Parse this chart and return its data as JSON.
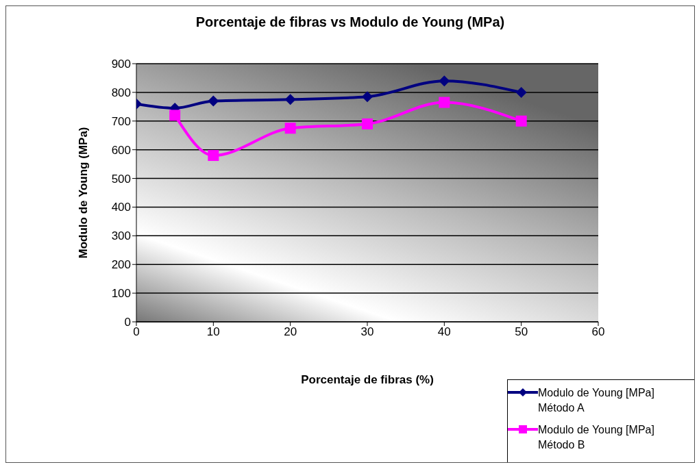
{
  "chart_data": {
    "type": "line",
    "title": "Porcentaje de fibras vs Modulo de Young (MPa)",
    "xlabel": "Porcentaje de fibras (%)",
    "ylabel": "Modulo de Young (MPa)",
    "xlim": [
      0,
      60
    ],
    "xticks": [
      0,
      10,
      20,
      30,
      40,
      50,
      60
    ],
    "ylim": [
      0,
      900
    ],
    "yticks": [
      0,
      100,
      200,
      300,
      400,
      500,
      600,
      700,
      800,
      900
    ],
    "grid": "y",
    "legend": "bottom right",
    "series": [
      {
        "name": "Modulo de Young [MPa] Método A",
        "color": "#000080",
        "marker": "diamond",
        "x": [
          0,
          5,
          10,
          20,
          30,
          40,
          50
        ],
        "values": [
          760,
          745,
          770,
          775,
          785,
          840,
          800
        ]
      },
      {
        "name": "Modulo de Young [MPa] Método B",
        "color": "#ff00ff",
        "marker": "square",
        "x": [
          5,
          10,
          20,
          30,
          40,
          50
        ],
        "values": [
          720,
          580,
          675,
          690,
          765,
          700
        ]
      }
    ]
  }
}
